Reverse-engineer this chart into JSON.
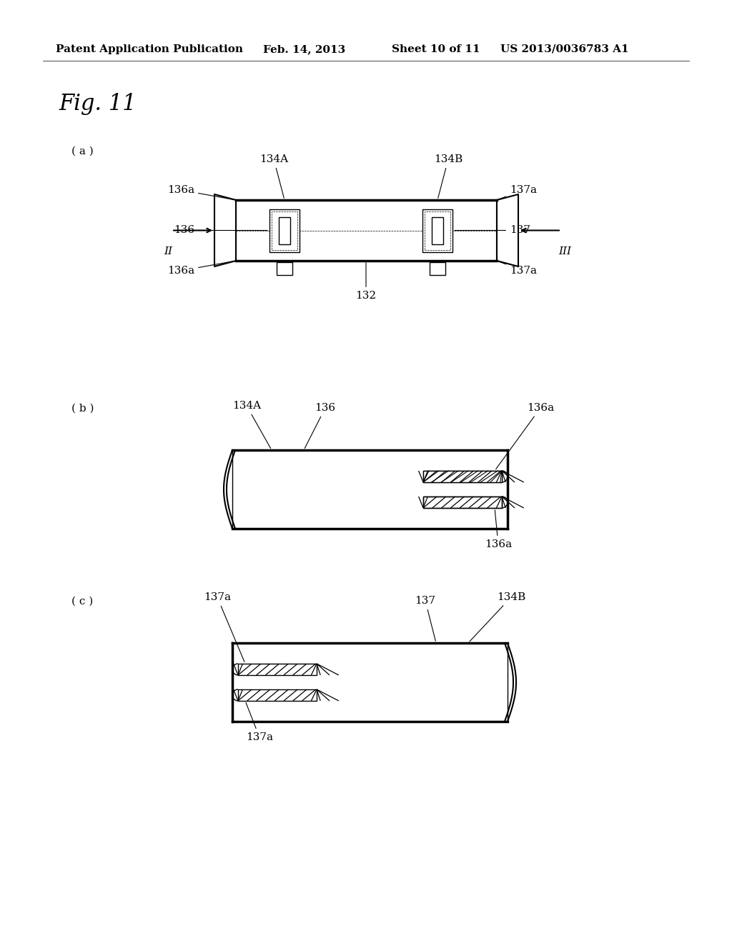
{
  "bg_color": "#ffffff",
  "header_text": "Patent Application Publication",
  "header_date": "Feb. 14, 2013",
  "header_sheet": "Sheet 10 of 11",
  "header_patent": "US 2013/0036783 A1",
  "fig_label": "Fig. 11",
  "sub_a": "( a )",
  "sub_b": "( b )",
  "sub_c": "( c )"
}
